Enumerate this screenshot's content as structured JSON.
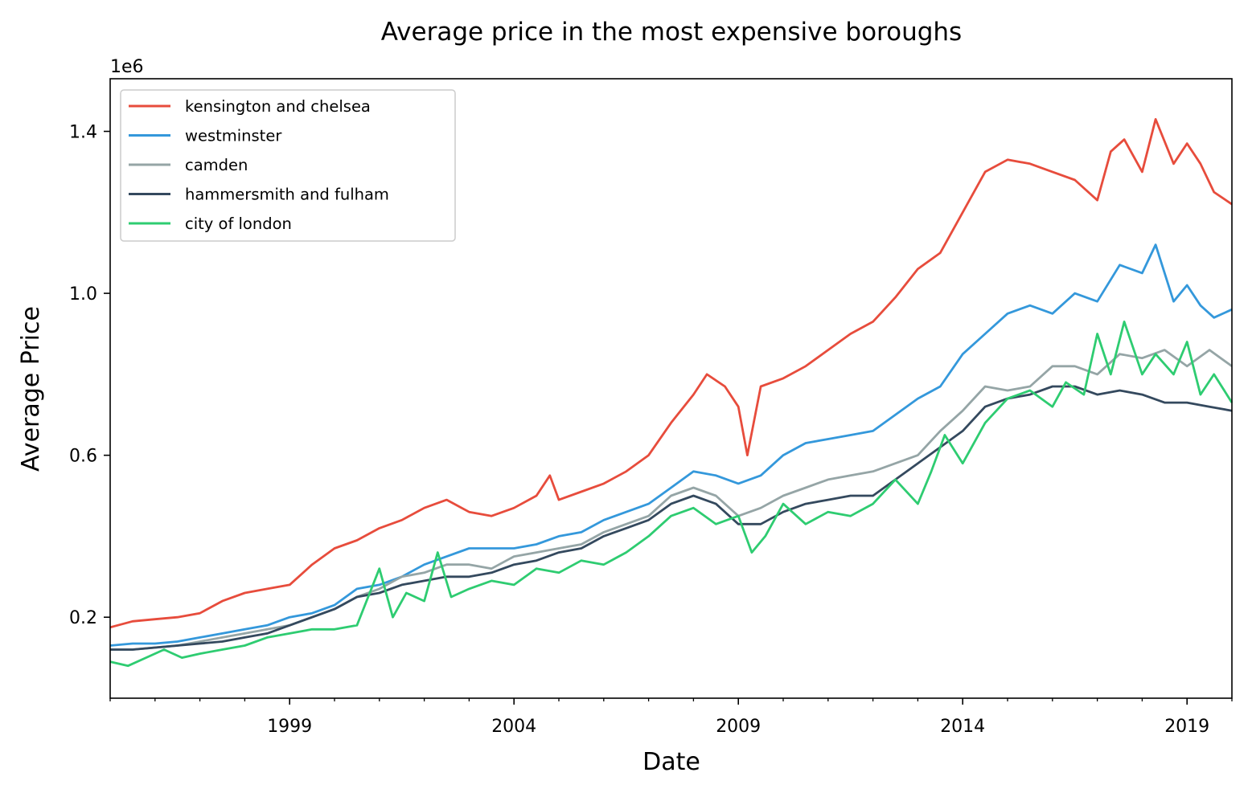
{
  "chart_data": {
    "type": "line",
    "title": "Average price in the most expensive boroughs",
    "xlabel": "Date",
    "ylabel": "Average Price",
    "y_offset_text": "1e6",
    "xlim": [
      1995.0,
      2020.0
    ],
    "ylim": [
      0.0,
      1.53
    ],
    "x_ticks": [
      1999,
      2004,
      2009,
      2014,
      2019
    ],
    "x_tick_labels": [
      "1999",
      "2004",
      "2009",
      "2014",
      "2019"
    ],
    "y_ticks": [
      0.2,
      0.6,
      1.0,
      1.4
    ],
    "y_tick_labels": [
      "0.2",
      "0.6",
      "1.0",
      "1.4"
    ],
    "grid": false,
    "legend_position": "top-left",
    "series": [
      {
        "name": "kensington and chelsea",
        "color": "#e74c3c",
        "x": [
          1995.0,
          1995.5,
          1996.0,
          1996.5,
          1997.0,
          1997.5,
          1998.0,
          1998.5,
          1999.0,
          1999.5,
          2000.0,
          2000.5,
          2001.0,
          2001.5,
          2002.0,
          2002.5,
          2003.0,
          2003.5,
          2004.0,
          2004.5,
          2004.8,
          2005.0,
          2005.5,
          2006.0,
          2006.5,
          2007.0,
          2007.5,
          2008.0,
          2008.3,
          2008.7,
          2009.0,
          2009.2,
          2009.5,
          2010.0,
          2010.5,
          2011.0,
          2011.5,
          2012.0,
          2012.5,
          2013.0,
          2013.5,
          2014.0,
          2014.5,
          2015.0,
          2015.5,
          2016.0,
          2016.5,
          2017.0,
          2017.3,
          2017.6,
          2018.0,
          2018.3,
          2018.7,
          2019.0,
          2019.3,
          2019.6,
          2020.0
        ],
        "y": [
          0.175,
          0.19,
          0.195,
          0.2,
          0.21,
          0.24,
          0.26,
          0.27,
          0.28,
          0.33,
          0.37,
          0.39,
          0.42,
          0.44,
          0.47,
          0.49,
          0.46,
          0.45,
          0.47,
          0.5,
          0.55,
          0.49,
          0.51,
          0.53,
          0.56,
          0.6,
          0.68,
          0.75,
          0.8,
          0.77,
          0.72,
          0.6,
          0.77,
          0.79,
          0.82,
          0.86,
          0.9,
          0.93,
          0.99,
          1.06,
          1.1,
          1.2,
          1.3,
          1.33,
          1.32,
          1.3,
          1.28,
          1.23,
          1.35,
          1.38,
          1.3,
          1.43,
          1.32,
          1.37,
          1.32,
          1.25,
          1.22
        ]
      },
      {
        "name": "westminster",
        "color": "#3498db",
        "x": [
          1995.0,
          1995.5,
          1996.0,
          1996.5,
          1997.0,
          1997.5,
          1998.0,
          1998.5,
          1999.0,
          1999.5,
          2000.0,
          2000.5,
          2001.0,
          2001.5,
          2002.0,
          2002.5,
          2003.0,
          2003.5,
          2004.0,
          2004.5,
          2005.0,
          2005.5,
          2006.0,
          2006.5,
          2007.0,
          2007.5,
          2008.0,
          2008.5,
          2009.0,
          2009.5,
          2010.0,
          2010.5,
          2011.0,
          2011.5,
          2012.0,
          2012.5,
          2013.0,
          2013.5,
          2014.0,
          2014.5,
          2015.0,
          2015.5,
          2016.0,
          2016.5,
          2017.0,
          2017.5,
          2018.0,
          2018.3,
          2018.7,
          2019.0,
          2019.3,
          2019.6,
          2020.0
        ],
        "y": [
          0.13,
          0.135,
          0.135,
          0.14,
          0.15,
          0.16,
          0.17,
          0.18,
          0.2,
          0.21,
          0.23,
          0.27,
          0.28,
          0.3,
          0.33,
          0.35,
          0.37,
          0.37,
          0.37,
          0.38,
          0.4,
          0.41,
          0.44,
          0.46,
          0.48,
          0.52,
          0.56,
          0.55,
          0.53,
          0.55,
          0.6,
          0.63,
          0.64,
          0.65,
          0.66,
          0.7,
          0.74,
          0.77,
          0.85,
          0.9,
          0.95,
          0.97,
          0.95,
          1.0,
          0.98,
          1.07,
          1.05,
          1.12,
          0.98,
          1.02,
          0.97,
          0.94,
          0.96
        ]
      },
      {
        "name": "camden",
        "color": "#95a5a6",
        "x": [
          1995.0,
          1995.5,
          1996.0,
          1996.5,
          1997.0,
          1997.5,
          1998.0,
          1998.5,
          1999.0,
          1999.5,
          2000.0,
          2000.5,
          2001.0,
          2001.5,
          2002.0,
          2002.5,
          2003.0,
          2003.5,
          2004.0,
          2004.5,
          2005.0,
          2005.5,
          2006.0,
          2006.5,
          2007.0,
          2007.5,
          2008.0,
          2008.5,
          2009.0,
          2009.5,
          2010.0,
          2010.5,
          2011.0,
          2011.5,
          2012.0,
          2012.5,
          2013.0,
          2013.5,
          2014.0,
          2014.5,
          2015.0,
          2015.5,
          2016.0,
          2016.5,
          2017.0,
          2017.5,
          2018.0,
          2018.5,
          2019.0,
          2019.5,
          2020.0
        ],
        "y": [
          0.12,
          0.12,
          0.125,
          0.13,
          0.14,
          0.15,
          0.16,
          0.17,
          0.18,
          0.2,
          0.22,
          0.25,
          0.27,
          0.3,
          0.31,
          0.33,
          0.33,
          0.32,
          0.35,
          0.36,
          0.37,
          0.38,
          0.41,
          0.43,
          0.45,
          0.5,
          0.52,
          0.5,
          0.45,
          0.47,
          0.5,
          0.52,
          0.54,
          0.55,
          0.56,
          0.58,
          0.6,
          0.66,
          0.71,
          0.77,
          0.76,
          0.77,
          0.82,
          0.82,
          0.8,
          0.85,
          0.84,
          0.86,
          0.82,
          0.86,
          0.82
        ]
      },
      {
        "name": "hammersmith and fulham",
        "color": "#34495e",
        "x": [
          1995.0,
          1995.5,
          1996.0,
          1996.5,
          1997.0,
          1997.5,
          1998.0,
          1998.5,
          1999.0,
          1999.5,
          2000.0,
          2000.5,
          2001.0,
          2001.5,
          2002.0,
          2002.5,
          2003.0,
          2003.5,
          2004.0,
          2004.5,
          2005.0,
          2005.5,
          2006.0,
          2006.5,
          2007.0,
          2007.5,
          2008.0,
          2008.5,
          2009.0,
          2009.5,
          2010.0,
          2010.5,
          2011.0,
          2011.5,
          2012.0,
          2012.5,
          2013.0,
          2013.5,
          2014.0,
          2014.5,
          2015.0,
          2015.5,
          2016.0,
          2016.5,
          2017.0,
          2017.5,
          2018.0,
          2018.5,
          2019.0,
          2019.5,
          2020.0
        ],
        "y": [
          0.12,
          0.12,
          0.125,
          0.13,
          0.135,
          0.14,
          0.15,
          0.16,
          0.18,
          0.2,
          0.22,
          0.25,
          0.26,
          0.28,
          0.29,
          0.3,
          0.3,
          0.31,
          0.33,
          0.34,
          0.36,
          0.37,
          0.4,
          0.42,
          0.44,
          0.48,
          0.5,
          0.48,
          0.43,
          0.43,
          0.46,
          0.48,
          0.49,
          0.5,
          0.5,
          0.54,
          0.58,
          0.62,
          0.66,
          0.72,
          0.74,
          0.75,
          0.77,
          0.77,
          0.75,
          0.76,
          0.75,
          0.73,
          0.73,
          0.72,
          0.71
        ]
      },
      {
        "name": "city of london",
        "color": "#2ecc71",
        "x": [
          1995.0,
          1995.4,
          1995.8,
          1996.2,
          1996.6,
          1997.0,
          1997.5,
          1998.0,
          1998.5,
          1999.0,
          1999.5,
          2000.0,
          2000.5,
          2001.0,
          2001.3,
          2001.6,
          2002.0,
          2002.3,
          2002.6,
          2003.0,
          2003.5,
          2004.0,
          2004.5,
          2005.0,
          2005.5,
          2006.0,
          2006.5,
          2007.0,
          2007.5,
          2008.0,
          2008.5,
          2009.0,
          2009.3,
          2009.6,
          2010.0,
          2010.5,
          2011.0,
          2011.5,
          2012.0,
          2012.5,
          2013.0,
          2013.3,
          2013.6,
          2014.0,
          2014.5,
          2015.0,
          2015.5,
          2016.0,
          2016.3,
          2016.7,
          2017.0,
          2017.3,
          2017.6,
          2018.0,
          2018.3,
          2018.7,
          2019.0,
          2019.3,
          2019.6,
          2020.0
        ],
        "y": [
          0.09,
          0.08,
          0.1,
          0.12,
          0.1,
          0.11,
          0.12,
          0.13,
          0.15,
          0.16,
          0.17,
          0.17,
          0.18,
          0.32,
          0.2,
          0.26,
          0.24,
          0.36,
          0.25,
          0.27,
          0.29,
          0.28,
          0.32,
          0.31,
          0.34,
          0.33,
          0.36,
          0.4,
          0.45,
          0.47,
          0.43,
          0.45,
          0.36,
          0.4,
          0.48,
          0.43,
          0.46,
          0.45,
          0.48,
          0.54,
          0.48,
          0.56,
          0.65,
          0.58,
          0.68,
          0.74,
          0.76,
          0.72,
          0.78,
          0.75,
          0.9,
          0.8,
          0.93,
          0.8,
          0.85,
          0.8,
          0.88,
          0.75,
          0.8,
          0.73
        ]
      }
    ]
  }
}
